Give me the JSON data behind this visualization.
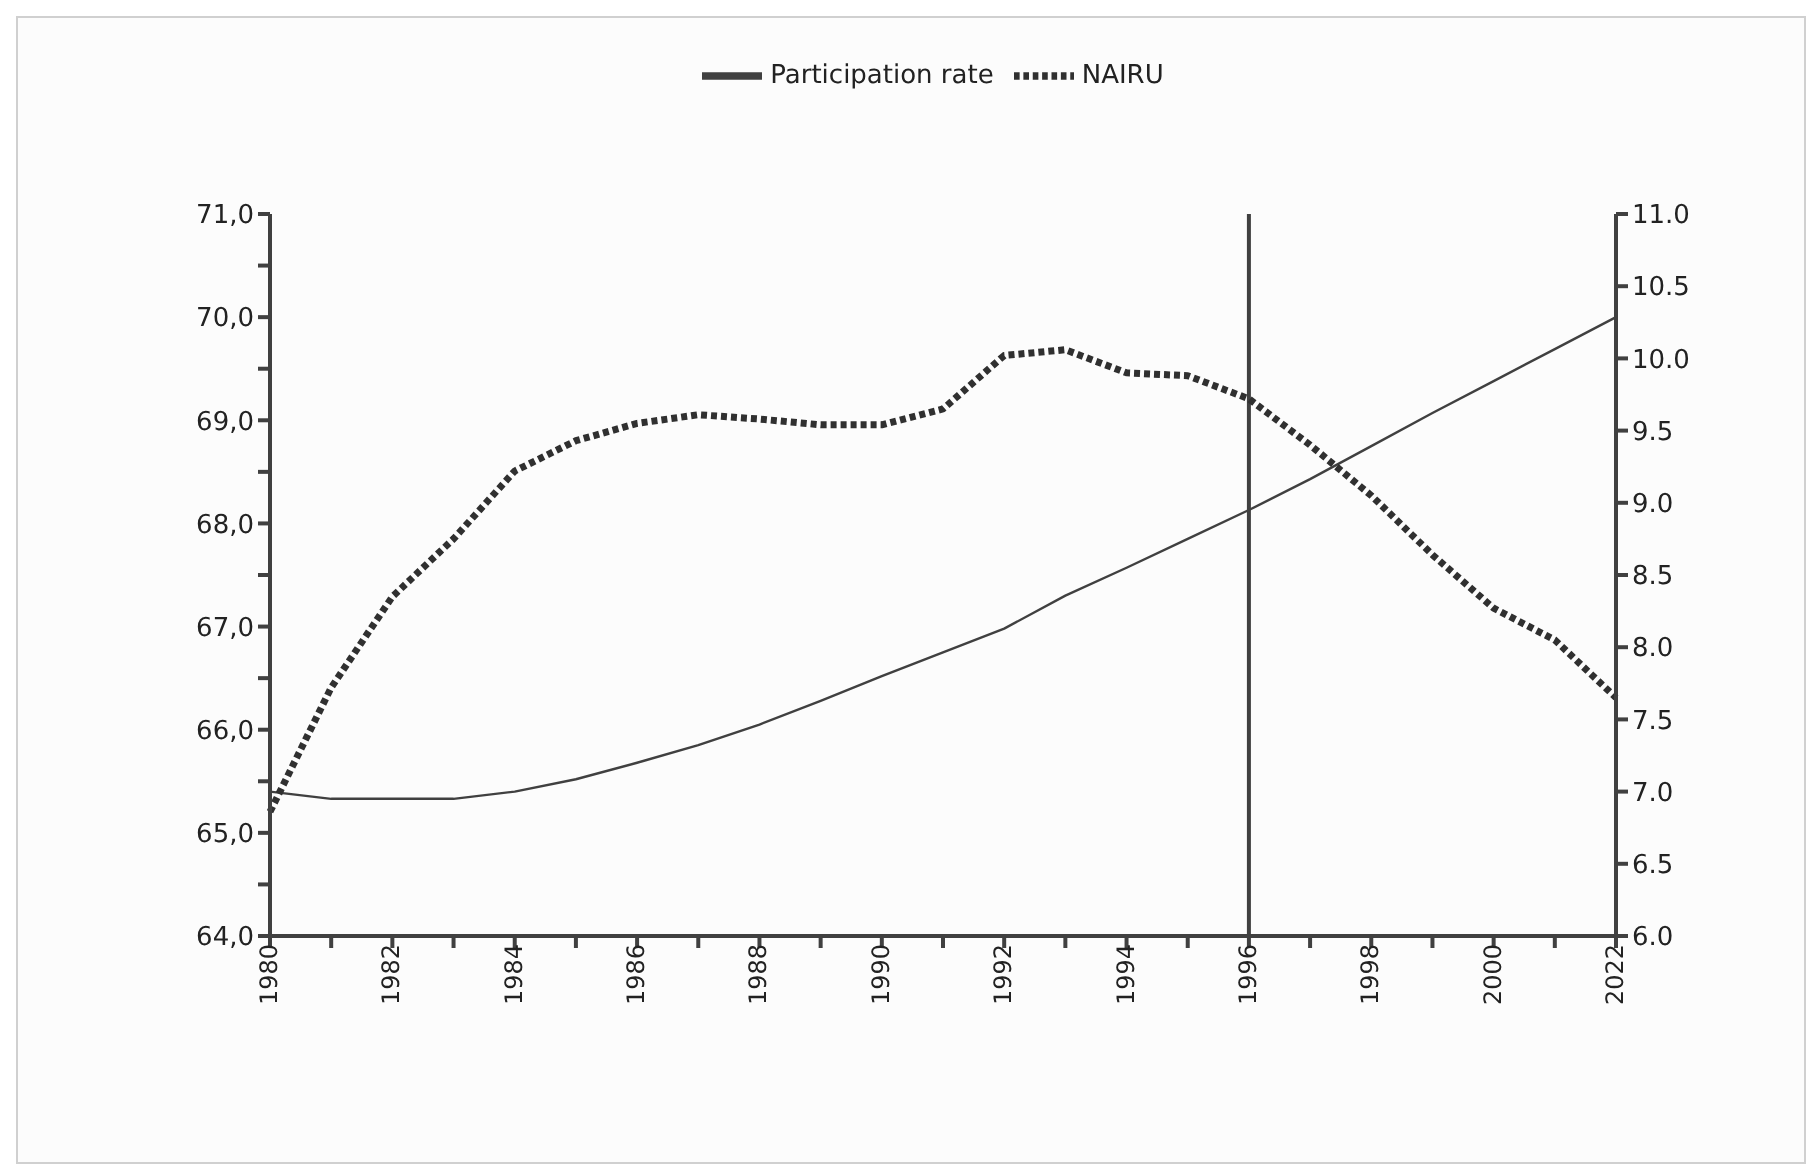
{
  "chart_data": {
    "type": "line",
    "legend": "top",
    "marker": "none",
    "grid": false,
    "categories": [
      "1980",
      null,
      "1982",
      null,
      "1984",
      null,
      "1986",
      null,
      "1988",
      null,
      "1990",
      null,
      "1992",
      null,
      "1994",
      null,
      "1996",
      null,
      "1998",
      null,
      "2000",
      null,
      "2022"
    ],
    "ylim": [
      64,
      71
    ],
    "yticks": [
      {
        "value": 64,
        "label": "64,0"
      },
      {
        "value": 64.5,
        "label": null
      },
      {
        "value": 65,
        "label": "65,0"
      },
      {
        "value": 65.5,
        "label": null
      },
      {
        "value": 66,
        "label": "66,0"
      },
      {
        "value": 66.5,
        "label": null
      },
      {
        "value": 67,
        "label": "67,0"
      },
      {
        "value": 67.5,
        "label": null
      },
      {
        "value": 68,
        "label": "68,0"
      },
      {
        "value": 68.5,
        "label": null
      },
      {
        "value": 69,
        "label": "69,0"
      },
      {
        "value": 69.5,
        "label": null
      },
      {
        "value": 70,
        "label": "70,0"
      },
      {
        "value": 70.5,
        "label": null
      },
      {
        "value": 71,
        "label": "71,0"
      }
    ],
    "y2lim": [
      6,
      11
    ],
    "y2ticks": [
      {
        "value": 6,
        "label": "6.0"
      },
      {
        "value": 6.5,
        "label": "6.5"
      },
      {
        "value": 7,
        "label": "7.0"
      },
      {
        "value": 7.5,
        "label": "7.5"
      },
      {
        "value": 8,
        "label": "8.0"
      },
      {
        "value": 8.5,
        "label": "8.5"
      },
      {
        "value": 9,
        "label": "9.0"
      },
      {
        "value": 9.5,
        "label": "9.5"
      },
      {
        "value": 10,
        "label": "10.0"
      },
      {
        "value": 10.5,
        "label": "10.5"
      },
      {
        "value": 11,
        "label": "11.0"
      }
    ],
    "ref_lines": [
      {
        "axis": "x",
        "value": "1996",
        "color": "#404040"
      }
    ],
    "series": [
      {
        "name": "Participation rate",
        "color": "#404040",
        "line_style": "solid",
        "values": [
          65.4,
          65.33,
          65.33,
          65.33,
          65.4,
          65.52,
          65.68,
          65.85,
          66.05,
          66.28,
          66.52,
          66.75,
          66.98,
          67.3,
          67.57,
          67.85,
          68.13,
          68.43,
          68.75,
          69.07,
          69.38,
          69.69,
          70.0
        ]
      },
      {
        "name": "NAIRU",
        "color": "#303030",
        "line_style": "dotted",
        "axis": "y2",
        "values": [
          6.86,
          7.72,
          8.35,
          8.75,
          9.22,
          9.43,
          9.55,
          9.61,
          9.58,
          9.54,
          9.54,
          9.65,
          10.02,
          10.06,
          9.9,
          9.88,
          9.72,
          9.4,
          9.05,
          8.64,
          8.27,
          8.05,
          7.65
        ]
      }
    ]
  }
}
